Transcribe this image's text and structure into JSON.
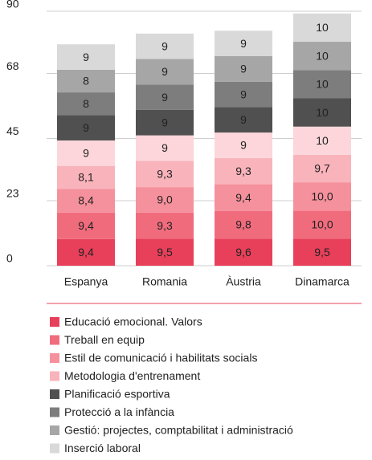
{
  "chart_data": {
    "type": "stacked_bar",
    "categories": [
      "Espanya",
      "Romania",
      "Àustria",
      "Dinamarca"
    ],
    "ylim": [
      0,
      90
    ],
    "yticks": [
      0,
      23,
      45,
      68,
      90
    ],
    "grid": true,
    "series": [
      {
        "name": "Educació emocional. Valors",
        "color": "#e8405a",
        "values": [
          9.4,
          9.5,
          9.6,
          9.5
        ],
        "value_labels": [
          "9,4",
          "9,5",
          "9,6",
          "9,5"
        ]
      },
      {
        "name": "Treball en equip",
        "color": "#f06c7d",
        "values": [
          9.4,
          9.3,
          9.8,
          10.0
        ],
        "value_labels": [
          "9,4",
          "9,3",
          "9,8",
          "10,0"
        ]
      },
      {
        "name": "Estil de comunicació i habilitats socials",
        "color": "#f5919c",
        "values": [
          8.4,
          9.0,
          9.4,
          10.0
        ],
        "value_labels": [
          "8,4",
          "9,0",
          "9,4",
          "10,0"
        ]
      },
      {
        "name": "Metodologia d'entrenament",
        "color": "#f9b3bb",
        "values": [
          8.1,
          9.3,
          9.3,
          9.7
        ],
        "value_labels": [
          "8,1",
          "9,3",
          "9,3",
          "9,7"
        ]
      },
      {
        "color": "#fcd6da",
        "values": [
          9,
          9,
          9,
          10
        ]
      },
      {
        "name": "Planificació esportiva",
        "color": "#505050",
        "values": [
          9,
          9,
          9,
          10
        ]
      },
      {
        "name": "Protecció a la infància",
        "color": "#7d7d7d",
        "values": [
          8,
          9,
          9,
          10
        ]
      },
      {
        "name": "Gestió: projectes, comptabilitat i administració",
        "color": "#a6a6a6",
        "values": [
          8,
          9,
          9,
          10
        ]
      },
      {
        "name": "Inserció laboral",
        "color": "#d9d9d9",
        "values": [
          9,
          9,
          9,
          10
        ]
      }
    ]
  }
}
